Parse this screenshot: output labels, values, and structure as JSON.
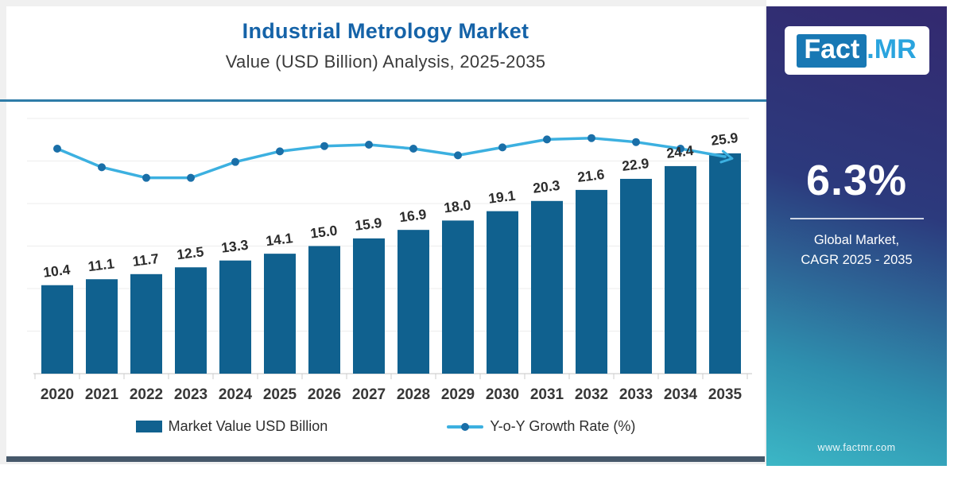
{
  "header": {
    "title": "Industrial Metrology Market",
    "subtitle": "Value (USD Billion) Analysis, 2025-2035"
  },
  "chart_data": {
    "type": "bar",
    "title": "Industrial Metrology Market",
    "subtitle": "Value (USD Billion) Analysis, 2025-2035",
    "xlabel": "",
    "ylabel": "Market Value USD Billion",
    "ylim": [
      0,
      30
    ],
    "grid": "faint-horizontal",
    "legend_position": "bottom",
    "categories": [
      "2020",
      "2021",
      "2022",
      "2023",
      "2024",
      "2025",
      "2026",
      "2027",
      "2028",
      "2029",
      "2030",
      "2031",
      "2032",
      "2033",
      "2034",
      "2035"
    ],
    "value_labels": [
      "10.4",
      "11.1",
      "11.7",
      "12.5",
      "13.3",
      "14.1",
      "15.0",
      "15.9",
      "16.9",
      "18.0",
      "19.1",
      "20.3",
      "21.6",
      "22.9",
      "24.4",
      "25.9"
    ],
    "series": [
      {
        "name": "Market Value USD Billion",
        "type": "bar",
        "color": "#10618f",
        "values": [
          10.4,
          11.1,
          11.7,
          12.5,
          13.3,
          14.1,
          15.0,
          15.9,
          16.9,
          18.0,
          19.1,
          20.3,
          21.6,
          22.9,
          24.4,
          25.9
        ]
      },
      {
        "name": "Y-o-Y Growth Rate (%)",
        "type": "line",
        "color": "#3cb0e0",
        "marker_color": "#1a6fa8",
        "values_unlabeled_estimated": [
          6.6,
          5.9,
          5.5,
          5.5,
          6.1,
          6.5,
          6.7,
          6.75,
          6.6,
          6.35,
          6.65,
          6.95,
          7.0,
          6.85,
          6.6,
          6.3
        ],
        "end_decoration": "arrowhead"
      }
    ]
  },
  "legend": {
    "bar_label": "Market Value USD Billion",
    "line_label": "Y-o-Y Growth Rate (%)"
  },
  "side_panel": {
    "logo_part1": "Fact",
    "logo_part2": ".MR",
    "cagr_value": "6.3%",
    "caption_line1": "Global Market,",
    "caption_line2": "CAGR 2025 - 2035",
    "website": "www.factmr.com"
  },
  "colors": {
    "bar": "#10618f",
    "line": "#3cb0e0",
    "marker": "#1a6fa8",
    "title": "#1563a8",
    "title_divider": "#2e7ca8",
    "bottom_bar": "#46586a",
    "panel_top": "#33296f",
    "panel_bottom": "#3cb7c6",
    "logo_box": "#1878b4",
    "logo_mr": "#2aa4de"
  }
}
